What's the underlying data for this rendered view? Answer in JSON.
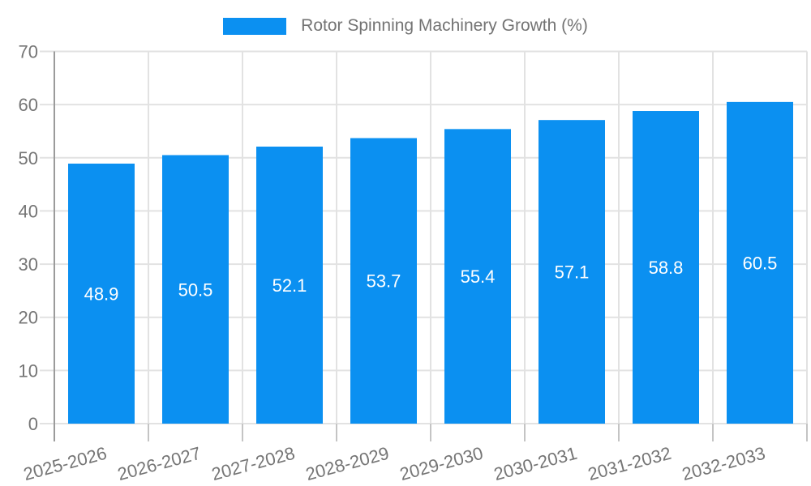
{
  "chart_data": {
    "type": "bar",
    "title": "",
    "xlabel": "",
    "ylabel": "",
    "categories": [
      "2025-2026",
      "2026-2027",
      "2027-2028",
      "2028-2029",
      "2029-2030",
      "2030-2031",
      "2031-2032",
      "2032-2033"
    ],
    "series": [
      {
        "name": "Rotor Spinning Machinery Growth (%)",
        "values": [
          48.9,
          50.5,
          52.1,
          53.7,
          55.4,
          57.1,
          58.8,
          60.5
        ]
      }
    ],
    "value_label_format": "1-decimal",
    "value_label_position": "inside-middle",
    "ylim": [
      0,
      70
    ],
    "yticks": [
      0,
      10,
      20,
      30,
      40,
      50,
      60,
      70
    ],
    "grid": {
      "horizontal": true,
      "vertical": true
    },
    "legend": {
      "position": "top-center",
      "label": "Rotor Spinning Machinery Growth (%)"
    },
    "x_tick_label_rotation_deg": -15,
    "colors": {
      "bar": "#0b90f1",
      "grid": "#e2e2e2",
      "axis": "#9b9b9b",
      "tick": "#c4c4c4",
      "tick_label": "#757575",
      "value_label": "#ffffff",
      "legend_text": "#737373",
      "background": "#ffffff"
    }
  }
}
